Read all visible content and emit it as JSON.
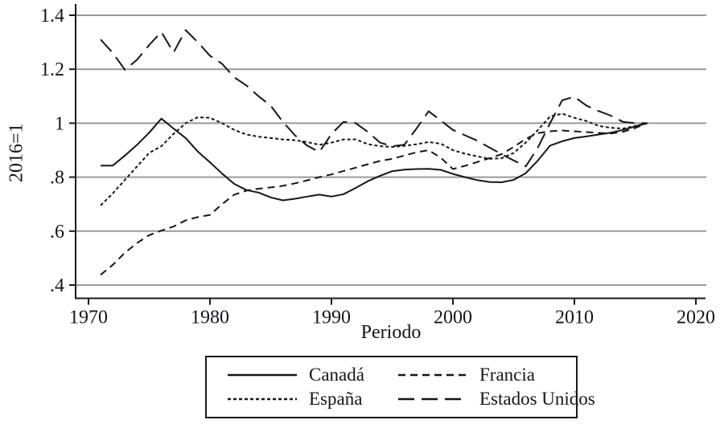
{
  "chart_data": {
    "type": "line",
    "title": "",
    "xlabel": "Periodo",
    "ylabel": "2016=1",
    "xlim": [
      1969,
      2021
    ],
    "ylim": [
      0.35,
      1.44
    ],
    "grid": "horizontal",
    "legend_position": "bottom",
    "x_ticks": [
      1970,
      1980,
      1990,
      2000,
      2010,
      2020
    ],
    "y_ticks": [
      {
        "value": 1.4,
        "label": "1.4"
      },
      {
        "value": 1.2,
        "label": "1.2"
      },
      {
        "value": 1.0,
        "label": "1"
      },
      {
        "value": 0.8,
        "label": ".8"
      },
      {
        "value": 0.6,
        "label": ".6"
      },
      {
        "value": 0.4,
        "label": ".4"
      }
    ],
    "years": [
      1971,
      1972,
      1973,
      1974,
      1975,
      1976,
      1977,
      1978,
      1979,
      1980,
      1981,
      1982,
      1983,
      1984,
      1985,
      1986,
      1987,
      1988,
      1989,
      1990,
      1991,
      1992,
      1993,
      1994,
      1995,
      1996,
      1997,
      1998,
      1999,
      2000,
      2001,
      2002,
      2003,
      2004,
      2005,
      2006,
      2007,
      2008,
      2009,
      2010,
      2011,
      2012,
      2013,
      2014,
      2015,
      2016
    ],
    "series": [
      {
        "name": "Canadá",
        "style": "solid",
        "values": [
          0.843,
          0.843,
          0.88,
          0.92,
          0.965,
          1.017,
          0.98,
          0.945,
          0.895,
          0.855,
          0.813,
          0.775,
          0.752,
          0.743,
          0.725,
          0.714,
          0.72,
          0.728,
          0.735,
          0.728,
          0.737,
          0.76,
          0.785,
          0.805,
          0.822,
          0.828,
          0.83,
          0.831,
          0.827,
          0.812,
          0.8,
          0.789,
          0.782,
          0.781,
          0.79,
          0.815,
          0.862,
          0.917,
          0.933,
          0.945,
          0.951,
          0.958,
          0.965,
          0.975,
          0.988,
          1.0
        ]
      },
      {
        "name": "España",
        "style": "short-dash",
        "values": [
          0.695,
          0.74,
          0.79,
          0.84,
          0.89,
          0.915,
          0.96,
          1.0,
          1.022,
          1.02,
          1.0,
          0.975,
          0.958,
          0.95,
          0.945,
          0.94,
          0.937,
          0.93,
          0.92,
          0.928,
          0.94,
          0.94,
          0.922,
          0.915,
          0.912,
          0.916,
          0.922,
          0.93,
          0.924,
          0.9,
          0.887,
          0.877,
          0.868,
          0.87,
          0.89,
          0.928,
          0.975,
          1.025,
          1.035,
          1.02,
          1.008,
          0.99,
          0.983,
          0.98,
          0.99,
          1.0
        ]
      },
      {
        "name": "Francia",
        "style": "medium-dash",
        "values": [
          0.438,
          0.475,
          0.52,
          0.556,
          0.585,
          0.602,
          0.617,
          0.64,
          0.652,
          0.66,
          0.7,
          0.735,
          0.75,
          0.757,
          0.762,
          0.768,
          0.777,
          0.788,
          0.8,
          0.81,
          0.823,
          0.835,
          0.848,
          0.86,
          0.868,
          0.88,
          0.892,
          0.9,
          0.872,
          0.83,
          0.842,
          0.856,
          0.87,
          0.885,
          0.912,
          0.942,
          0.963,
          0.97,
          0.973,
          0.97,
          0.967,
          0.964,
          0.962,
          0.968,
          0.982,
          1.0
        ]
      },
      {
        "name": "Estados Unidos",
        "style": "long-dash",
        "values": [
          1.31,
          1.26,
          1.198,
          1.235,
          1.29,
          1.338,
          1.262,
          1.345,
          1.3,
          1.25,
          1.22,
          1.17,
          1.14,
          1.1,
          1.065,
          1.005,
          0.955,
          0.917,
          0.893,
          0.96,
          1.005,
          1.0,
          0.968,
          0.928,
          0.915,
          0.92,
          0.98,
          1.044,
          1.01,
          0.975,
          0.955,
          0.935,
          0.91,
          0.885,
          0.862,
          0.84,
          0.91,
          1.0,
          1.085,
          1.098,
          1.065,
          1.045,
          1.028,
          1.005,
          1.0,
          1.0
        ]
      }
    ]
  },
  "legend_entries": [
    {
      "label": "Canadá",
      "style": "solid"
    },
    {
      "label": "Francia",
      "style": "medium-dash"
    },
    {
      "label": "España",
      "style": "short-dash"
    },
    {
      "label": "Estados Unidos",
      "style": "long-dash"
    }
  ],
  "styles": {
    "line_color": "#161616",
    "grid_color": "#9a9a9a",
    "axis_color": "#1a1a1a",
    "text_color": "#14141e",
    "dash_patterns": {
      "solid": "",
      "short-dash": "4 3",
      "medium-dash": "9 6",
      "long-dash": "20 9"
    }
  }
}
